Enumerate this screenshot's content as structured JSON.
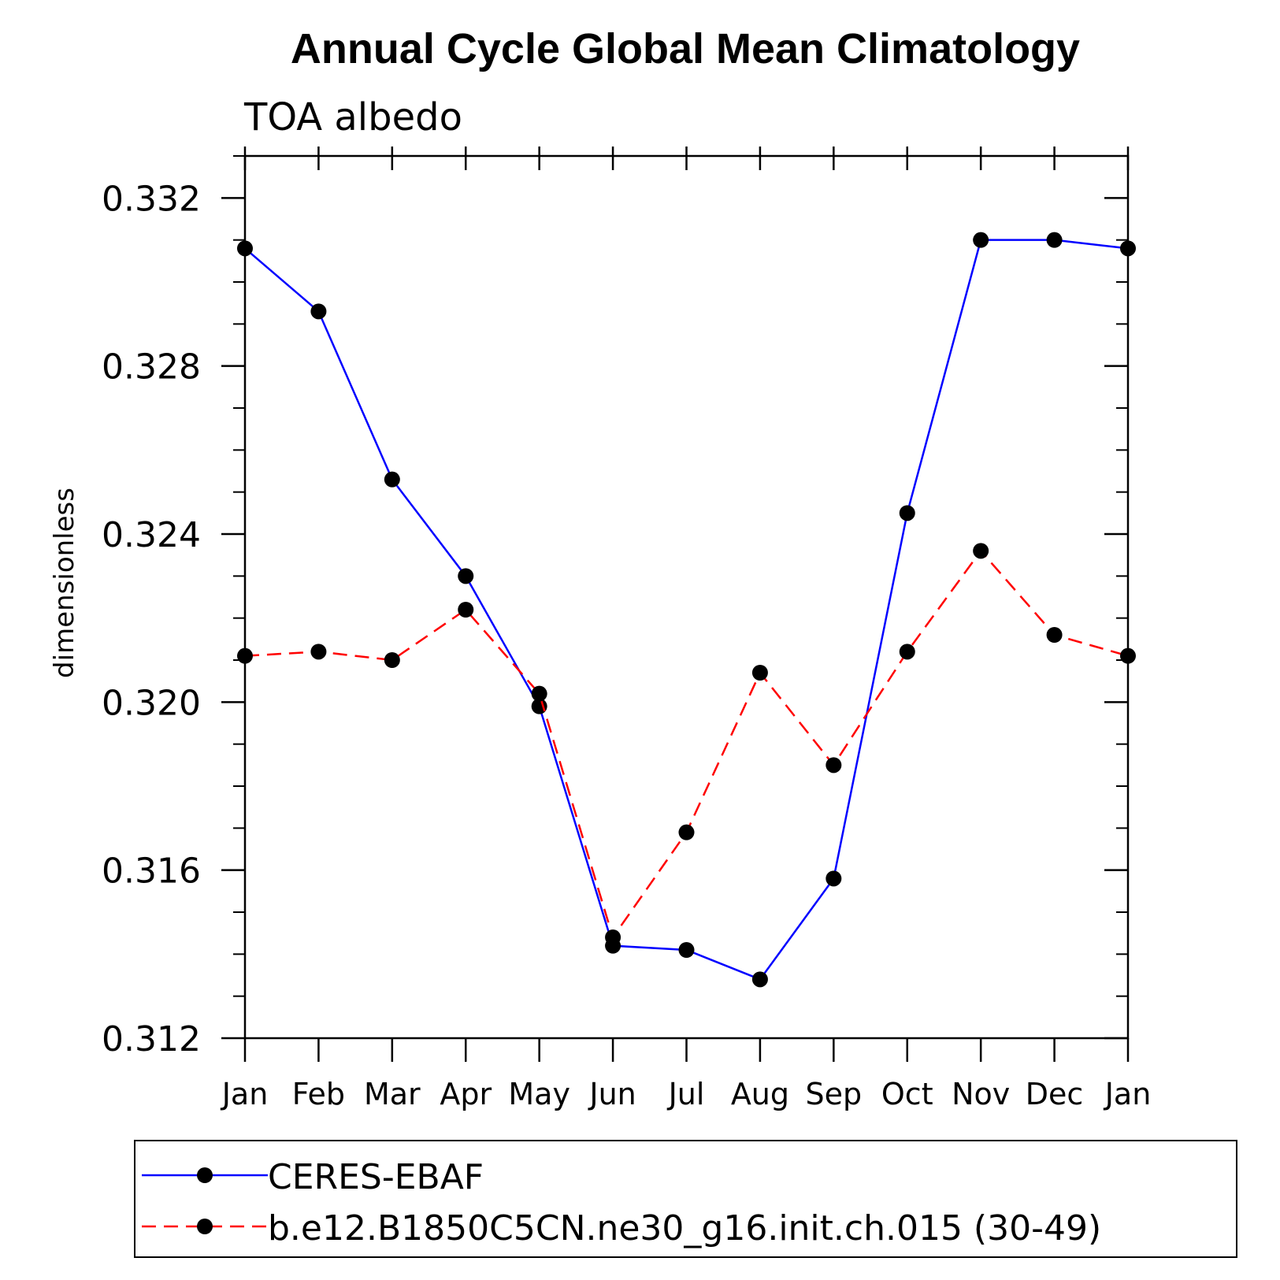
{
  "chart_data": {
    "type": "line",
    "title": "Annual Cycle Global Mean Climatology",
    "subtitle": "TOA albedo",
    "xlabel": "",
    "ylabel": "dimensionless",
    "categories": [
      "Jan",
      "Feb",
      "Mar",
      "Apr",
      "May",
      "Jun",
      "Jul",
      "Aug",
      "Sep",
      "Oct",
      "Nov",
      "Dec",
      "Jan"
    ],
    "ylim": [
      0.312,
      0.333
    ],
    "y_ticks": [
      "0.312",
      "0.316",
      "0.320",
      "0.324",
      "0.328",
      "0.332"
    ],
    "y_tick_values": [
      0.312,
      0.316,
      0.32,
      0.324,
      0.328,
      0.332
    ],
    "y_minor_step": 0.001,
    "grid": false,
    "legend_position": "bottom",
    "series": [
      {
        "name": "CERES-EBAF",
        "color": "#0000ff",
        "dash": "solid",
        "marker_color": "#000000",
        "values": [
          0.3308,
          0.3293,
          0.3253,
          0.323,
          0.3199,
          0.3142,
          0.3141,
          0.3134,
          0.3158,
          0.3245,
          0.331,
          0.331,
          0.3308
        ]
      },
      {
        "name": "b.e12.B1850C5CN.ne30_g16.init.ch.015 (30-49)",
        "color": "#ff0000",
        "dash": "dashed",
        "marker_color": "#000000",
        "values": [
          0.3211,
          0.3212,
          0.321,
          0.3222,
          0.3202,
          0.3144,
          0.3169,
          0.3207,
          0.3185,
          0.3212,
          0.3236,
          0.3216,
          0.3211
        ]
      }
    ]
  }
}
